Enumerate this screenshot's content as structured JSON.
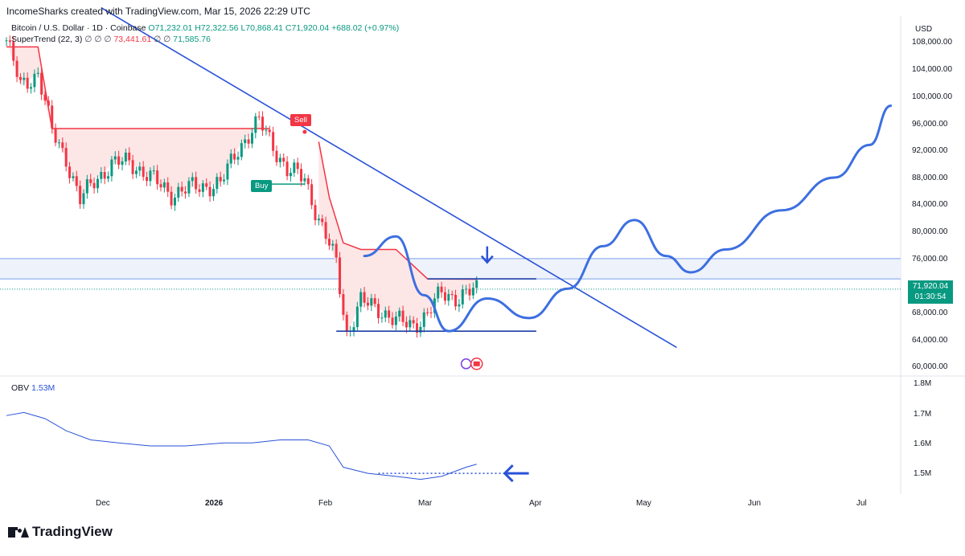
{
  "header": {
    "attribution": "IncomeSharks created with TradingView.com, Mar 15, 2026 22:29 UTC",
    "symbol_line": "Bitcoin / U.S. Dollar · 1D · Coinbase",
    "open": "O71,232.01",
    "high": "H72,322.56",
    "low": "L70,868.41",
    "close": "C71,920.04",
    "change": "+688.02 (+0.97%)",
    "supertrend_label": "SuperTrend (22, 3)",
    "supertrend_placeholders": "∅ ∅ ∅",
    "supertrend_value_red": "73,441.61",
    "supertrend_placeholders2": "∅ ∅",
    "supertrend_value_green": "71,585.76",
    "currency": "USD"
  },
  "price_axis": {
    "labels": [
      "108,000.00",
      "104,000.00",
      "100,000.00",
      "96,000.00",
      "92,000.00",
      "88,000.00",
      "84,000.00",
      "80,000.00",
      "76,000.00",
      "68,000.00",
      "64,000.00",
      "60,000.00"
    ],
    "last_price": "71,920.04",
    "countdown": "01:30:54"
  },
  "obv": {
    "label": "OBV",
    "value": "1.53M",
    "axis_labels": [
      "1.8M",
      "1.7M",
      "1.6M",
      "1.5M"
    ]
  },
  "time_axis": {
    "labels": [
      "Dec",
      "2026",
      "Feb",
      "Mar",
      "Apr",
      "May",
      "Jun",
      "Jul"
    ]
  },
  "signals": {
    "sell": "Sell",
    "buy": "Buy"
  },
  "brand": "TradingView",
  "colors": {
    "up": "#089981",
    "down": "#f23645",
    "trendline": "#2a52d8",
    "projection": "#3d6fe0",
    "resistance_line": "#7aa0f0",
    "zone_fill": "#eef2fb",
    "obv_line": "#2a52d8",
    "supertrend_red": "#f23645",
    "supertrend_fill": "#fde6e6"
  },
  "chart_data": [
    {
      "type": "candlestick",
      "title": "Bitcoin / U.S. Dollar · 1D · Coinbase",
      "ylabel": "USD",
      "ylim": [
        59000,
        112000
      ],
      "x_range": [
        "2025-11-01",
        "2026-07-12"
      ],
      "close_series": {
        "dates": [
          "2025-11-01",
          "2025-11-05",
          "2025-11-10",
          "2025-11-14",
          "2025-11-18",
          "2025-11-22",
          "2025-11-26",
          "2025-12-01",
          "2025-12-06",
          "2025-12-12",
          "2025-12-18",
          "2025-12-24",
          "2026-01-01",
          "2026-01-06",
          "2026-01-12",
          "2026-01-15",
          "2026-01-20",
          "2026-01-25",
          "2026-01-29",
          "2026-02-03",
          "2026-02-06",
          "2026-02-10",
          "2026-02-15",
          "2026-02-20",
          "2026-02-25",
          "2026-03-01",
          "2026-03-05",
          "2026-03-10",
          "2026-03-15"
        ],
        "values": [
          110000,
          103000,
          105000,
          96000,
          92000,
          85500,
          88500,
          91000,
          91500,
          89000,
          86500,
          87500,
          88000,
          93500,
          97500,
          95000,
          90000,
          89000,
          82500,
          76000,
          65000,
          70000,
          69000,
          67000,
          66500,
          68000,
          71500,
          70500,
          71920
        ]
      },
      "supertrend": {
        "red_segments": [
          {
            "dates": [
              "2025-11-01",
              "2025-11-10",
              "2025-11-14",
              "2026-01-15"
            ],
            "values": [
              109000,
              109000,
              96500,
              96500
            ]
          },
          {
            "dates": [
              "2026-01-29",
              "2026-02-01",
              "2026-02-05",
              "2026-02-10",
              "2026-02-20",
              "2026-03-01",
              "2026-03-15"
            ],
            "values": [
              94500,
              86000,
              79000,
              78000,
              78000,
              73500,
              73441.61
            ]
          }
        ],
        "green_segments": [
          {
            "dates": [
              "2026-01-12",
              "2026-01-25"
            ],
            "values": [
              88000,
              88000
            ]
          }
        ]
      },
      "signals": [
        {
          "label": "Sell",
          "date": "2026-01-25",
          "price": 96000
        },
        {
          "label": "Buy",
          "date": "2026-01-15",
          "price": 88000
        }
      ],
      "trendline": {
        "dates": [
          "2025-11-28",
          "2026-05-11"
        ],
        "values": [
          115000,
          63000
        ]
      },
      "resistance_zone": [
        73500,
        76600
      ],
      "resistance_line": {
        "dates": [
          "2026-03-01",
          "2026-04-01"
        ],
        "value": 73500
      },
      "support_line": {
        "dates": [
          "2026-02-03",
          "2026-04-01"
        ],
        "value": 65500
      },
      "projection_path": {
        "dates": [
          "2026-02-11",
          "2026-02-20",
          "2026-02-28",
          "2026-03-07",
          "2026-03-18",
          "2026-03-30",
          "2026-04-10",
          "2026-04-20",
          "2026-04-29",
          "2026-05-08",
          "2026-05-15",
          "2026-05-25",
          "2026-06-10",
          "2026-06-25",
          "2026-07-05",
          "2026-07-11"
        ],
        "values": [
          77000,
          80000,
          71000,
          65500,
          70500,
          67500,
          72000,
          78500,
          82500,
          77000,
          74500,
          78000,
          84000,
          89000,
          94000,
          100000
        ]
      }
    },
    {
      "type": "line",
      "title": "OBV",
      "ylim": [
        1.45,
        1.82
      ],
      "series": [
        {
          "name": "OBV",
          "dates": [
            "2025-11-01",
            "2025-11-06",
            "2025-11-12",
            "2025-11-18",
            "2025-11-25",
            "2025-12-03",
            "2025-12-12",
            "2025-12-22",
            "2026-01-02",
            "2026-01-10",
            "2026-01-18",
            "2026-01-26",
            "2026-02-01",
            "2026-02-05",
            "2026-02-12",
            "2026-02-20",
            "2026-02-27",
            "2026-03-05",
            "2026-03-12",
            "2026-03-15"
          ],
          "values": [
            1.69,
            1.7,
            1.68,
            1.64,
            1.61,
            1.6,
            1.59,
            1.59,
            1.6,
            1.6,
            1.61,
            1.61,
            1.59,
            1.52,
            1.5,
            1.49,
            1.48,
            1.49,
            1.52,
            1.53
          ]
        }
      ]
    }
  ]
}
